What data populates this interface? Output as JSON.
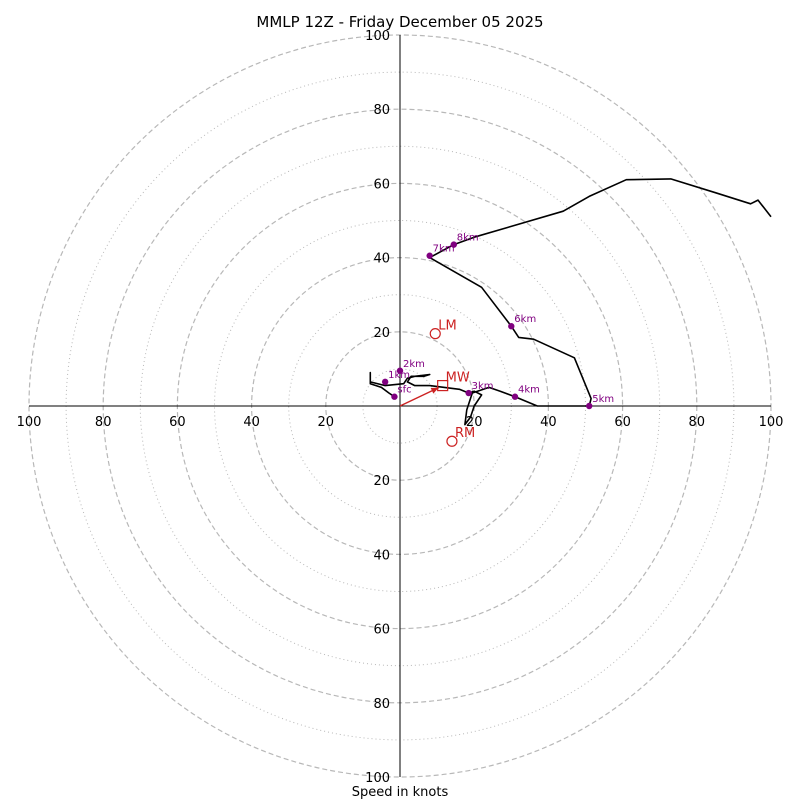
{
  "chart_data": {
    "type": "hodograph",
    "title": "MMLP 12Z - Friday December 05 2025",
    "xlabel": "Speed in knots",
    "units": "knots",
    "axis_range": [
      -100,
      100
    ],
    "ring_major": [
      20,
      40,
      60,
      80,
      100
    ],
    "ring_minor": [
      10,
      30,
      50,
      70,
      90
    ],
    "x_tick_labels": [
      "100",
      "80",
      "60",
      "40",
      "20",
      "20",
      "40",
      "60",
      "80",
      "100"
    ],
    "y_tick_labels": [
      "100",
      "80",
      "60",
      "40",
      "20",
      "20",
      "40",
      "60",
      "80",
      "100"
    ],
    "x_tick_values": [
      -100,
      -80,
      -60,
      -40,
      -20,
      20,
      40,
      60,
      80,
      100
    ],
    "y_tick_values": [
      100,
      80,
      60,
      40,
      20,
      -20,
      -40,
      -60,
      -80,
      -100
    ],
    "trace": [
      [
        -1.5,
        2.5
      ],
      [
        -3,
        3.5
      ],
      [
        -5,
        5
      ],
      [
        -8,
        6
      ],
      [
        -8,
        9
      ],
      [
        -8,
        6.5
      ],
      [
        -4,
        5.5
      ],
      [
        1,
        6
      ],
      [
        2,
        7.5
      ],
      [
        4,
        8
      ],
      [
        8,
        8.5
      ],
      [
        6.5,
        8
      ],
      [
        3,
        8
      ],
      [
        2,
        6.5
      ],
      [
        4,
        5.5
      ],
      [
        8,
        5.5
      ],
      [
        12,
        5
      ],
      [
        16,
        4.5
      ],
      [
        18.5,
        3.5
      ],
      [
        20,
        4
      ],
      [
        22,
        3
      ],
      [
        20,
        0
      ],
      [
        19,
        -3
      ],
      [
        17.5,
        -5
      ],
      [
        18,
        -1
      ],
      [
        19.5,
        3.5
      ],
      [
        24,
        5
      ],
      [
        27,
        4
      ],
      [
        31,
        2.5
      ],
      [
        37,
        0
      ],
      [
        42,
        0
      ],
      [
        51,
        0
      ],
      [
        51.5,
        2
      ],
      [
        47,
        13
      ],
      [
        36,
        18
      ],
      [
        32,
        18.5
      ],
      [
        30,
        21.5
      ],
      [
        22,
        32
      ],
      [
        8,
        40
      ],
      [
        14.5,
        43.5
      ],
      [
        20,
        45.5
      ],
      [
        44,
        52.5
      ],
      [
        51,
        56.5
      ],
      [
        61,
        61
      ],
      [
        73,
        61.2
      ],
      [
        85,
        57.5
      ],
      [
        94.5,
        54.5
      ],
      [
        96.5,
        55.5
      ],
      [
        100,
        51
      ]
    ],
    "height_markers": [
      {
        "label": "sfc",
        "u": -1.5,
        "v": 2.5
      },
      {
        "label": "1km",
        "u": -4,
        "v": 6.5
      },
      {
        "label": "2km",
        "u": 0,
        "v": 9.5
      },
      {
        "label": "3km",
        "u": 18.5,
        "v": 3.5
      },
      {
        "label": "4km",
        "u": 31,
        "v": 2.5
      },
      {
        "label": "5km",
        "u": 51,
        "v": 0
      },
      {
        "label": "6km",
        "u": 30,
        "v": 21.5
      },
      {
        "label": "7km",
        "u": 8,
        "v": 40.5
      },
      {
        "label": "8km",
        "u": 14.5,
        "v": 43.5
      }
    ],
    "storm_motion": [
      {
        "label": "MW",
        "u": 11.5,
        "v": 5.5,
        "marker": "square"
      },
      {
        "label": "LM",
        "u": 9.5,
        "v": 19.5,
        "marker": "circle"
      },
      {
        "label": "RM",
        "u": 14,
        "v": -9.5,
        "marker": "circle"
      }
    ],
    "mean_wind_vector": {
      "u": 11.5,
      "v": 5.5
    }
  },
  "colors": {
    "trace": "#000000",
    "marker": "#800080",
    "storm": "#cc2222",
    "grid": "#b8b8b8"
  }
}
